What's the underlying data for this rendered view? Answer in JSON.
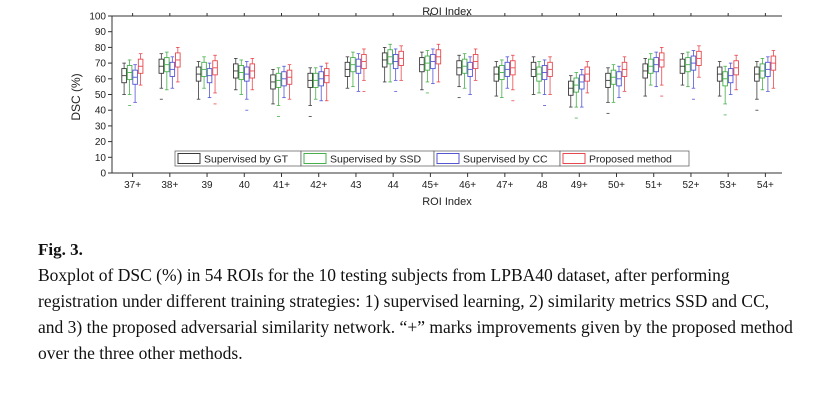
{
  "figure": {
    "label": "Fig. 3.",
    "caption": "Boxplot of DSC (%) in 54 ROIs for the 10 testing subjects from LPBA40 dataset, after performing registration under different training strategies: 1) supervised learning, 2) similarity metrics SSD and CC, and 3) the proposed adversarial similarity network. “+” marks improvements given by the proposed method over the three other methods."
  },
  "chart_data": {
    "type": "boxplot",
    "title": "",
    "top_axis_label": "ROI Index",
    "xlabel": "ROI Index",
    "ylabel": "DSC (%)",
    "ylim": [
      0,
      100
    ],
    "yticks": [
      0,
      10,
      20,
      30,
      40,
      50,
      60,
      70,
      80,
      90,
      100
    ],
    "categories": [
      "37+",
      "38+",
      "39",
      "40",
      "41+",
      "42+",
      "43",
      "44",
      "45+",
      "46+",
      "47+",
      "48",
      "49+",
      "50+",
      "51+",
      "52+",
      "53+",
      "54+"
    ],
    "legend_position": "bottom",
    "series": [
      {
        "name": "Supervised by GT",
        "color": "#3a3a3a",
        "medians": [
          62,
          68,
          63,
          65,
          58,
          59,
          66,
          72,
          69,
          67,
          63,
          66,
          54,
          59,
          65,
          68,
          63,
          63
        ]
      },
      {
        "name": "Supervised by SSD",
        "color": "#46b04a",
        "medians": [
          64,
          69,
          66,
          64,
          59,
          59,
          69,
          74,
          70,
          68,
          64,
          63,
          56,
          61,
          68,
          69,
          60,
          65
        ]
      },
      {
        "name": "Supervised by CC",
        "color": "#5456d6",
        "medians": [
          61,
          66,
          62,
          63,
          60,
          60,
          68,
          71,
          71,
          66,
          66,
          64,
          58,
          60,
          69,
          70,
          62,
          66
        ]
      },
      {
        "name": "Proposed method",
        "color": "#e8484e",
        "medians": [
          68,
          72,
          67,
          65,
          61,
          62,
          71,
          73,
          74,
          71,
          67,
          66,
          63,
          66,
          72,
          73,
          67,
          70
        ]
      }
    ]
  }
}
